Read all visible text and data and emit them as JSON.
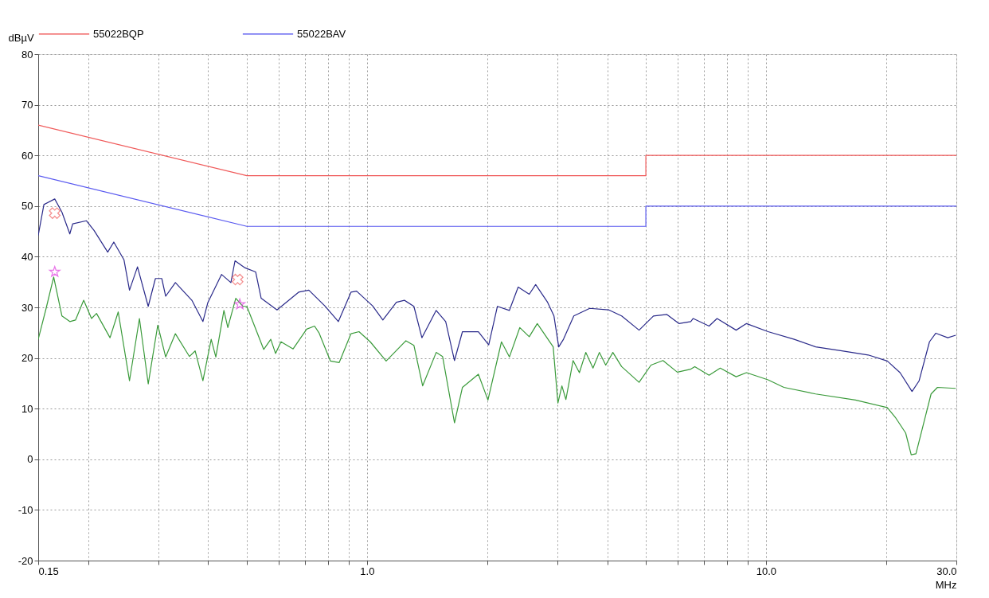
{
  "chart_data": {
    "type": "line",
    "xlabel": "MHz",
    "ylabel": "dBµV",
    "log": "x",
    "grid": true,
    "legend": "top",
    "line_style": "solid",
    "xlim": [
      0.15,
      30
    ],
    "ylim": [
      -20,
      80
    ],
    "xticks": [
      0.15,
      {
        "value": 0.2,
        "label": null
      },
      {
        "value": 0.3,
        "label": null
      },
      {
        "value": 0.4,
        "label": null
      },
      {
        "value": 0.5,
        "label": null
      },
      {
        "value": 0.6,
        "label": null
      },
      {
        "value": 0.7,
        "label": null
      },
      {
        "value": 0.8,
        "label": null
      },
      {
        "value": 0.9,
        "label": null
      },
      {
        "value": 1,
        "label": "1.0"
      },
      {
        "value": 2,
        "label": null
      },
      {
        "value": 3,
        "label": null
      },
      {
        "value": 4,
        "label": null
      },
      {
        "value": 5,
        "label": null
      },
      {
        "value": 6,
        "label": null
      },
      {
        "value": 7,
        "label": null
      },
      {
        "value": 8,
        "label": null
      },
      {
        "value": 9,
        "label": null
      },
      {
        "value": 10,
        "label": "10.0"
      },
      {
        "value": 20,
        "label": null
      },
      {
        "value": 30,
        "label": "30.0"
      }
    ],
    "yticks": [
      -20,
      -10,
      0,
      10,
      20,
      30,
      40,
      50,
      60,
      70,
      80
    ],
    "series": [
      {
        "name": "55022BQP",
        "type": "line",
        "color": "#f05a5a",
        "x": [
          0.15,
          0.5,
          5,
          5,
          30
        ],
        "values": [
          66,
          56,
          56,
          60,
          60
        ]
      },
      {
        "name": "55022BAV",
        "type": "line",
        "color": "#5a5af0",
        "x": [
          0.15,
          0.5,
          5,
          5,
          30
        ],
        "values": [
          56,
          46,
          46,
          50,
          50
        ]
      },
      {
        "type": "line",
        "color": "#2a2a8a",
        "x": [
          0.15,
          0.155,
          0.165,
          0.172,
          0.18,
          0.183,
          0.198,
          0.207,
          0.224,
          0.232,
          0.246,
          0.254,
          0.266,
          0.283,
          0.295,
          0.306,
          0.313,
          0.331,
          0.364,
          0.388,
          0.399,
          0.432,
          0.456,
          0.467,
          0.495,
          0.526,
          0.543,
          0.595,
          0.674,
          0.715,
          0.784,
          0.848,
          0.912,
          0.942,
          1.033,
          1.096,
          1.185,
          1.241,
          1.311,
          1.373,
          1.491,
          1.575,
          1.657,
          1.735,
          1.902,
          2.019,
          2.123,
          2.275,
          2.393,
          2.551,
          2.647,
          2.836,
          2.942,
          3.024,
          3.108,
          3.299,
          3.617,
          4.039,
          4.347,
          4.808,
          5.223,
          5.646,
          6.05,
          6.48,
          6.57,
          7.201,
          7.54,
          8.418,
          8.936,
          10.12,
          11.77,
          13.32,
          15.5,
          18.04,
          20.14,
          21.68,
          23.23,
          24.2,
          25.69,
          26.65,
          28.55,
          29.9
        ],
        "values": [
          44.2,
          50.3,
          51.4,
          48.8,
          44.5,
          46.5,
          47.1,
          45.2,
          40.9,
          42.9,
          39.4,
          33.4,
          38,
          30.2,
          35.7,
          35.7,
          32.2,
          34.9,
          31.4,
          27.2,
          30.9,
          36.5,
          34.9,
          39.2,
          37.8,
          37,
          31.8,
          29.5,
          33,
          33.4,
          30.3,
          27.2,
          33,
          33.2,
          30.3,
          27.5,
          31,
          31.4,
          30.2,
          24,
          29.4,
          27.2,
          19.5,
          25.2,
          25.2,
          22.6,
          30.2,
          29.4,
          34,
          32.6,
          34.5,
          31,
          28.3,
          22.2,
          23.7,
          28.3,
          29.8,
          29.5,
          28.3,
          25.5,
          28.3,
          28.6,
          26.8,
          27.2,
          27.8,
          26.3,
          27.8,
          25.5,
          26.8,
          25.2,
          23.7,
          22.2,
          21.4,
          20.6,
          19.4,
          17.1,
          13.4,
          15.5,
          23.2,
          24.9,
          24,
          24.5
        ]
      },
      {
        "type": "line",
        "color": "#3a9a3a",
        "x": [
          0.15,
          0.157,
          0.164,
          0.172,
          0.18,
          0.186,
          0.195,
          0.204,
          0.21,
          0.227,
          0.238,
          0.254,
          0.269,
          0.283,
          0.299,
          0.313,
          0.331,
          0.359,
          0.371,
          0.388,
          0.407,
          0.418,
          0.438,
          0.448,
          0.469,
          0.489,
          0.5,
          0.551,
          0.574,
          0.59,
          0.609,
          0.653,
          0.706,
          0.739,
          0.759,
          0.81,
          0.852,
          0.912,
          0.955,
          1.019,
          1.117,
          1.252,
          1.311,
          1.379,
          1.491,
          1.547,
          1.657,
          1.735,
          1.902,
          2.01,
          2.173,
          2.275,
          2.415,
          2.551,
          2.672,
          2.929,
          3.01,
          3.08,
          3.152,
          3.285,
          3.407,
          3.535,
          3.685,
          3.823,
          3.966,
          4.133,
          4.347,
          4.808,
          5.151,
          5.518,
          5.995,
          6.48,
          6.631,
          7.201,
          7.68,
          8.418,
          8.936,
          10.12,
          11.09,
          13.32,
          16.76,
          20.14,
          21.09,
          22.39,
          23.12,
          23.76,
          25.93,
          26.9,
          29.9
        ],
        "values": [
          23.7,
          29.8,
          36,
          28.3,
          27.2,
          27.5,
          31.4,
          27.8,
          28.8,
          24,
          29.1,
          15.5,
          27.8,
          14.9,
          26.5,
          20.2,
          24.8,
          20.3,
          21.4,
          15.5,
          23.7,
          20.2,
          29.4,
          26,
          31.8,
          30.2,
          30.2,
          21.7,
          23.7,
          20.9,
          23.2,
          21.8,
          25.7,
          26.3,
          24.9,
          19.4,
          19.1,
          24.8,
          25.2,
          23.2,
          19.4,
          23.4,
          22.5,
          14.5,
          21.1,
          20.3,
          7.2,
          14.2,
          16.8,
          11.7,
          23.2,
          20.2,
          26,
          24.2,
          26.8,
          22.2,
          11.1,
          14.5,
          11.8,
          19.5,
          17.1,
          21.1,
          18,
          21.1,
          18.6,
          21.1,
          18.3,
          15.2,
          18.6,
          19.5,
          17.2,
          17.8,
          18.3,
          16.6,
          18,
          16.3,
          17.1,
          15.7,
          14.2,
          12.9,
          11.7,
          10.2,
          8.3,
          5.2,
          0.9,
          1.1,
          12.9,
          14.2,
          14
        ]
      },
      {
        "type": "scatter",
        "marker": "cross",
        "color": "#f06060",
        "x": [
          0.165,
          0.474
        ],
        "values": [
          48.6,
          35.5
        ]
      },
      {
        "type": "scatter",
        "marker": "star",
        "color": "#e040e0",
        "x": [
          0.165,
          0.48
        ],
        "values": [
          37,
          30.6
        ]
      }
    ]
  }
}
